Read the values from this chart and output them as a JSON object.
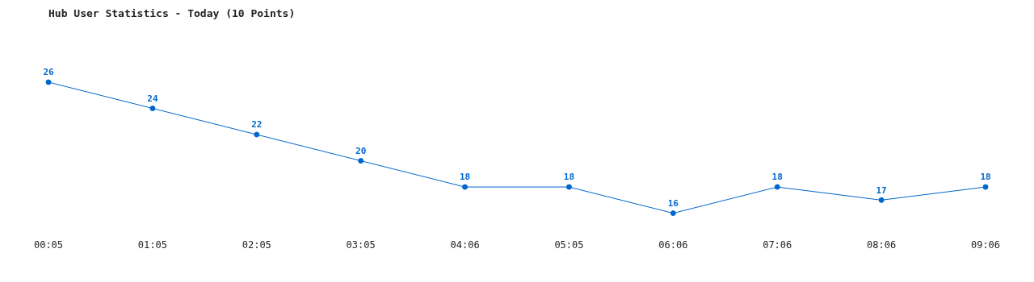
{
  "chart_data": {
    "type": "line",
    "title": "Hub User Statistics - Today (10 Points)",
    "categories": [
      "00:05",
      "01:05",
      "02:05",
      "03:05",
      "04:06",
      "05:05",
      "06:06",
      "07:06",
      "08:06",
      "09:06"
    ],
    "series": [
      {
        "color": "#0066cc",
        "values": [
          26,
          24,
          22,
          20,
          18,
          18,
          16,
          18,
          17,
          18
        ]
      }
    ],
    "data_labels": true,
    "grid": false,
    "legend": false,
    "marker": "circle",
    "line_style": "solid"
  }
}
